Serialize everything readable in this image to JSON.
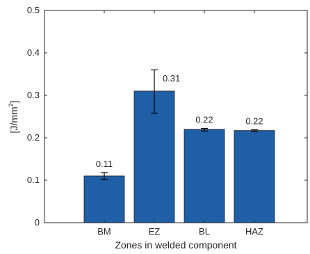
{
  "chart_data": {
    "type": "bar",
    "categories": [
      "BM",
      "EZ",
      "BL",
      "HAZ"
    ],
    "values": [
      0.11,
      0.31,
      0.22,
      0.217
    ],
    "error_low": [
      0.102,
      0.258,
      0.216,
      0.215
    ],
    "error_high": [
      0.118,
      0.36,
      0.222,
      0.219
    ],
    "data_labels": [
      "0.11",
      "0.31",
      "0.22",
      "0.22"
    ],
    "title": "",
    "xlabel": "Zones in welded component",
    "ylabel_main": "[J/mm",
    "ylabel_sup": "2",
    "ylabel_close": "]",
    "ylim": [
      0,
      0.5
    ],
    "yticks": [
      0,
      0.1,
      0.2,
      0.3,
      0.4,
      0.5
    ],
    "ytick_labels": [
      "0",
      "0.1",
      "0.2",
      "0.3",
      "0.4",
      "0.5"
    ],
    "grid": false,
    "bar_color": "#1f5fa6",
    "axis_color": "#262626"
  }
}
